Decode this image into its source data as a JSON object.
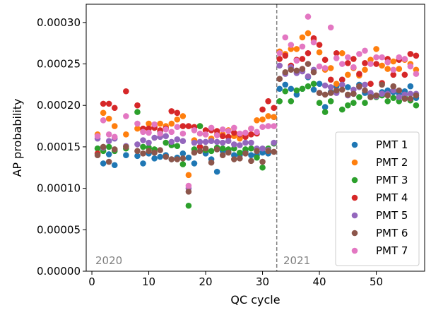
{
  "chart_data": {
    "type": "scatter",
    "title": "",
    "xlabel": "QC cycle",
    "ylabel": "AP probability",
    "xlim": [
      -1,
      58.5
    ],
    "ylim": [
      0,
      0.000322
    ],
    "xticks": [
      0,
      10,
      20,
      30,
      40,
      50
    ],
    "xtick_labels": [
      "0",
      "10",
      "20",
      "30",
      "40",
      "50"
    ],
    "yticks": [
      0,
      5e-05,
      0.0001,
      0.00015,
      0.0002,
      0.00025,
      0.0003
    ],
    "ytick_labels": [
      "0.00000",
      "0.00005",
      "0.00010",
      "0.00015",
      "0.00020",
      "0.00025",
      "0.00030"
    ],
    "grid": false,
    "legend_position": "bottom-right",
    "divider": {
      "x": 32.5,
      "style": "dashed",
      "color": "#808080"
    },
    "annotations": [
      {
        "text": "2020",
        "region": "left"
      },
      {
        "text": "2021",
        "region": "right"
      }
    ],
    "series": [
      {
        "name": "PMT 1",
        "color": "#1f77b4",
        "x": [
          1,
          2,
          3,
          4,
          6,
          8,
          9,
          10,
          11,
          12,
          13,
          14,
          15,
          16,
          17,
          18,
          19,
          20,
          21,
          22,
          23,
          24,
          25,
          26,
          27,
          28,
          29,
          30,
          31,
          32,
          33,
          34,
          35,
          36,
          37,
          38,
          39,
          40,
          41,
          42,
          43,
          44,
          45,
          46,
          47,
          48,
          49,
          50,
          51,
          52,
          53,
          54,
          55,
          56,
          57
        ],
        "y": [
          0.000148,
          0.00013,
          0.000141,
          0.000128,
          0.00014,
          0.000139,
          0.00013,
          0.000142,
          0.000136,
          0.000138,
          0.00014,
          0.000135,
          0.000137,
          0.000142,
          0.000137,
          0.00013,
          0.00015,
          0.000142,
          0.000135,
          0.00012,
          0.000145,
          0.000145,
          0.00014,
          0.00014,
          0.000144,
          0.00014,
          0.00014,
          0.000143,
          0.000142,
          0.000186,
          0.00022,
          0.000225,
          0.00022,
          0.000213,
          0.00022,
          0.000234,
          0.000219,
          0.000226,
          0.000198,
          0.000216,
          0.000223,
          0.000231,
          0.000222,
          0.000214,
          0.000225,
          0.000215,
          0.000213,
          0.000211,
          0.000216,
          0.000218,
          0.000216,
          0.000214,
          0.000217,
          0.000223,
          0.000209
        ]
      },
      {
        "name": "PMT 2",
        "color": "#ff7f0e",
        "x": [
          1,
          2,
          3,
          4,
          6,
          8,
          9,
          10,
          11,
          12,
          13,
          14,
          15,
          16,
          17,
          18,
          19,
          20,
          21,
          22,
          23,
          24,
          25,
          26,
          27,
          28,
          29,
          30,
          31,
          32,
          33,
          34,
          35,
          36,
          37,
          38,
          39,
          40,
          41,
          42,
          43,
          44,
          45,
          46,
          47,
          48,
          49,
          50,
          51,
          52,
          53,
          54,
          55,
          56,
          57
        ],
        "y": [
          0.000165,
          0.000191,
          0.000184,
          0.000175,
          0.000165,
          0.000172,
          0.000169,
          0.000178,
          0.000175,
          0.000178,
          0.000175,
          0.000178,
          0.000183,
          0.000187,
          0.000116,
          0.000158,
          0.000175,
          0.000165,
          0.00016,
          0.000165,
          0.000165,
          0.00017,
          0.000163,
          0.00016,
          0.000163,
          0.000172,
          0.000182,
          0.000183,
          0.000187,
          0.000186,
          0.000265,
          0.000262,
          0.000268,
          0.000268,
          0.000282,
          0.000287,
          0.000279,
          0.000264,
          0.000243,
          0.000245,
          0.000226,
          0.000263,
          0.000237,
          0.000245,
          0.000236,
          0.000243,
          0.000255,
          0.000268,
          0.000248,
          0.000244,
          0.000253,
          0.000244,
          0.000255,
          0.00025,
          0.000243
        ]
      },
      {
        "name": "PMT 3",
        "color": "#2ca02c",
        "x": [
          1,
          2,
          3,
          4,
          6,
          8,
          9,
          10,
          11,
          12,
          13,
          14,
          15,
          16,
          17,
          18,
          19,
          20,
          21,
          22,
          23,
          24,
          25,
          26,
          27,
          28,
          29,
          30,
          31,
          32,
          33,
          34,
          35,
          36,
          37,
          38,
          39,
          40,
          41,
          42,
          43,
          44,
          45,
          46,
          47,
          48,
          49,
          50,
          51,
          52,
          53,
          54,
          55,
          56,
          57
        ],
        "y": [
          0.000148,
          0.000145,
          0.00015,
          0.000145,
          0.000148,
          0.000192,
          0.00015,
          0.000149,
          0.000147,
          0.000168,
          0.000155,
          0.000152,
          0.000151,
          0.000129,
          7.9e-05,
          0.000147,
          0.000175,
          0.000146,
          0.000145,
          0.000149,
          0.000148,
          0.000147,
          0.000148,
          0.000143,
          0.000147,
          0.000148,
          0.000137,
          0.000125,
          0.000148,
          0.000154,
          0.000205,
          0.000217,
          0.000205,
          0.000218,
          0.00022,
          0.000223,
          0.000226,
          0.000203,
          0.000192,
          0.000205,
          0.000216,
          0.000195,
          0.0002,
          0.000203,
          0.00021,
          0.000203,
          0.00021,
          0.00021,
          0.000212,
          0.000205,
          0.000209,
          0.000205,
          0.00021,
          0.000206,
          0.0002
        ]
      },
      {
        "name": "PMT 4",
        "color": "#d62728",
        "x": [
          1,
          2,
          3,
          4,
          6,
          8,
          9,
          10,
          11,
          12,
          13,
          14,
          15,
          16,
          17,
          18,
          19,
          20,
          21,
          22,
          23,
          24,
          25,
          26,
          27,
          28,
          29,
          30,
          31,
          32,
          33,
          34,
          35,
          36,
          37,
          38,
          39,
          40,
          41,
          42,
          43,
          44,
          45,
          46,
          47,
          48,
          49,
          50,
          51,
          52,
          53,
          54,
          55,
          56,
          57
        ],
        "y": [
          0.000142,
          0.000202,
          0.000202,
          0.000197,
          0.000217,
          0.0002,
          0.000172,
          0.000172,
          0.000173,
          0.00017,
          0.000172,
          0.000193,
          0.000191,
          0.000175,
          0.000175,
          0.000174,
          0.00015,
          0.00017,
          0.00017,
          0.000169,
          0.000163,
          0.000162,
          0.000167,
          0.000165,
          0.000162,
          0.000165,
          0.000166,
          0.000195,
          0.000205,
          0.000197,
          0.000256,
          0.00026,
          0.000248,
          0.000255,
          0.000256,
          0.000263,
          0.000281,
          0.000273,
          0.000255,
          0.000231,
          0.000263,
          0.000231,
          0.000251,
          0.000256,
          0.000238,
          0.000251,
          0.000226,
          0.00025,
          0.000227,
          0.000256,
          0.000237,
          0.000255,
          0.000237,
          0.000262,
          0.00026
        ]
      },
      {
        "name": "PMT 5",
        "color": "#9467bd",
        "x": [
          1,
          2,
          3,
          4,
          6,
          8,
          9,
          10,
          11,
          12,
          13,
          14,
          15,
          16,
          17,
          18,
          19,
          20,
          21,
          22,
          23,
          24,
          25,
          26,
          27,
          28,
          29,
          30,
          31,
          32,
          33,
          34,
          35,
          36,
          37,
          38,
          39,
          40,
          41,
          42,
          43,
          44,
          45,
          46,
          47,
          48,
          49,
          50,
          51,
          52,
          53,
          54,
          55,
          56,
          57
        ],
        "y": [
          0.00016,
          0.000149,
          0.000157,
          0.00016,
          0.000151,
          0.000153,
          0.000158,
          0.000155,
          0.000161,
          0.000162,
          0.000163,
          0.000156,
          0.000159,
          0.000157,
          0.0001,
          0.000155,
          0.000156,
          0.000156,
          0.000157,
          0.000156,
          0.000155,
          0.000157,
          0.000153,
          0.000152,
          0.000155,
          0.000155,
          0.000148,
          0.000148,
          0.000146,
          0.000155,
          0.000248,
          0.000238,
          0.000246,
          0.000239,
          0.000241,
          0.000235,
          0.000243,
          0.000215,
          0.000224,
          0.000222,
          0.000215,
          0.000225,
          0.000212,
          0.000219,
          0.000222,
          0.000225,
          0.000215,
          0.000211,
          0.000214,
          0.000214,
          0.000218,
          0.00021,
          0.000213,
          0.000214,
          0.000214
        ]
      },
      {
        "name": "PMT 6",
        "color": "#8c564b",
        "x": [
          1,
          2,
          3,
          4,
          6,
          8,
          9,
          10,
          11,
          12,
          13,
          14,
          15,
          16,
          17,
          18,
          19,
          20,
          21,
          22,
          23,
          24,
          25,
          26,
          27,
          28,
          29,
          30,
          31,
          32,
          33,
          34,
          35,
          36,
          37,
          38,
          39,
          40,
          41,
          42,
          43,
          44,
          45,
          46,
          47,
          48,
          49,
          50,
          51,
          52,
          53,
          54,
          55,
          56,
          57
        ],
        "y": [
          0.00014,
          0.00015,
          0.000132,
          0.000147,
          0.00015,
          0.000145,
          0.000142,
          0.000145,
          0.000143,
          0.000146,
          0.000138,
          0.000135,
          0.000135,
          0.000136,
          9.6e-05,
          0.000143,
          0.000145,
          0.000148,
          0.000131,
          0.000147,
          0.00014,
          0.000143,
          0.000135,
          0.000136,
          0.000142,
          0.000133,
          0.000145,
          0.000132,
          0.000145,
          0.000144,
          0.000232,
          0.00024,
          0.000243,
          0.000242,
          0.000244,
          0.00025,
          0.00024,
          0.000215,
          0.000213,
          0.000215,
          0.000218,
          0.000219,
          0.000213,
          0.000214,
          0.000223,
          0.000218,
          0.00021,
          0.000212,
          0.000225,
          0.000212,
          0.000223,
          0.000218,
          0.000208,
          0.000208,
          0.000212
        ]
      },
      {
        "name": "PMT 7",
        "color": "#e377c2",
        "x": [
          1,
          2,
          3,
          4,
          6,
          8,
          9,
          10,
          11,
          12,
          13,
          14,
          15,
          16,
          17,
          18,
          19,
          20,
          21,
          22,
          23,
          24,
          25,
          26,
          27,
          28,
          29,
          30,
          31,
          32,
          33,
          34,
          35,
          36,
          37,
          38,
          39,
          40,
          41,
          42,
          43,
          44,
          45,
          46,
          47,
          48,
          49,
          50,
          51,
          52,
          53,
          54,
          55,
          56,
          57
        ],
        "y": [
          0.000163,
          0.000182,
          0.000165,
          0.000162,
          0.000187,
          0.000178,
          0.000168,
          0.000167,
          0.000177,
          0.000166,
          0.000171,
          0.000168,
          0.000174,
          0.000166,
          0.000103,
          0.00017,
          0.000166,
          0.000165,
          0.000173,
          0.000164,
          0.000171,
          0.000169,
          0.000173,
          0.000166,
          0.000167,
          0.000172,
          0.000168,
          0.000174,
          0.000175,
          0.000175,
          0.000263,
          0.000282,
          0.000273,
          0.000254,
          0.000271,
          0.000307,
          0.000276,
          0.000247,
          0.000245,
          0.000294,
          0.000257,
          0.00025,
          0.000258,
          0.000246,
          0.000262,
          0.000266,
          0.00025,
          0.000258,
          0.000258,
          0.000252,
          0.000243,
          0.000258,
          0.000256,
          0.000247,
          0.000238
        ]
      }
    ]
  }
}
